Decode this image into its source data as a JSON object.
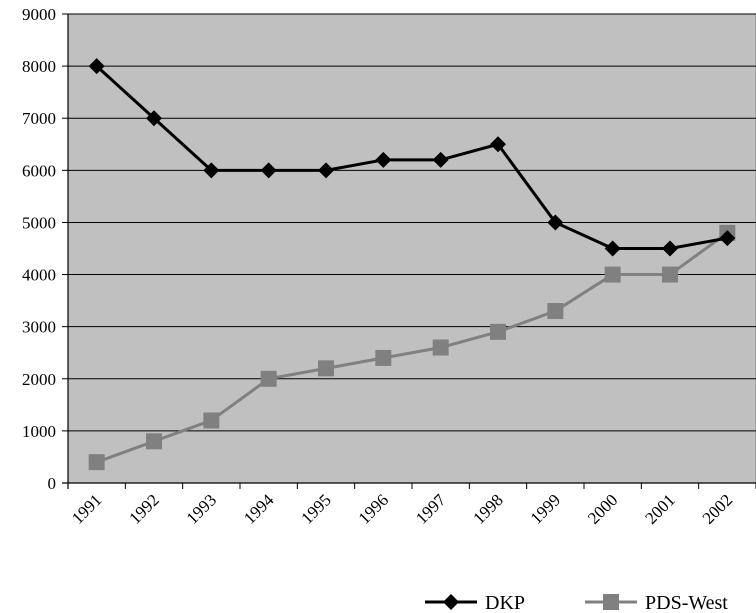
{
  "chart_data": {
    "type": "line",
    "title": "",
    "xlabel": "",
    "ylabel": "",
    "categories": [
      "1991",
      "1992",
      "1993",
      "1994",
      "1995",
      "1996",
      "1997",
      "1998",
      "1999",
      "2000",
      "2001",
      "2002"
    ],
    "ylim": [
      0,
      9000
    ],
    "yticks": [
      0,
      1000,
      2000,
      3000,
      4000,
      5000,
      6000,
      7000,
      8000,
      9000
    ],
    "grid": true,
    "legend_position": "bottom-right",
    "series": [
      {
        "name": "DKP",
        "marker": "diamond",
        "color": "#000000",
        "values": [
          8000,
          7000,
          6000,
          6000,
          6000,
          6200,
          6200,
          6500,
          5000,
          4500,
          4500,
          4700
        ]
      },
      {
        "name": "PDS-West",
        "marker": "square",
        "color": "#808080",
        "values": [
          400,
          800,
          1200,
          2000,
          2200,
          2400,
          2600,
          2900,
          3300,
          4000,
          4000,
          4800
        ]
      }
    ],
    "plot_background": "#c0c0c0"
  }
}
